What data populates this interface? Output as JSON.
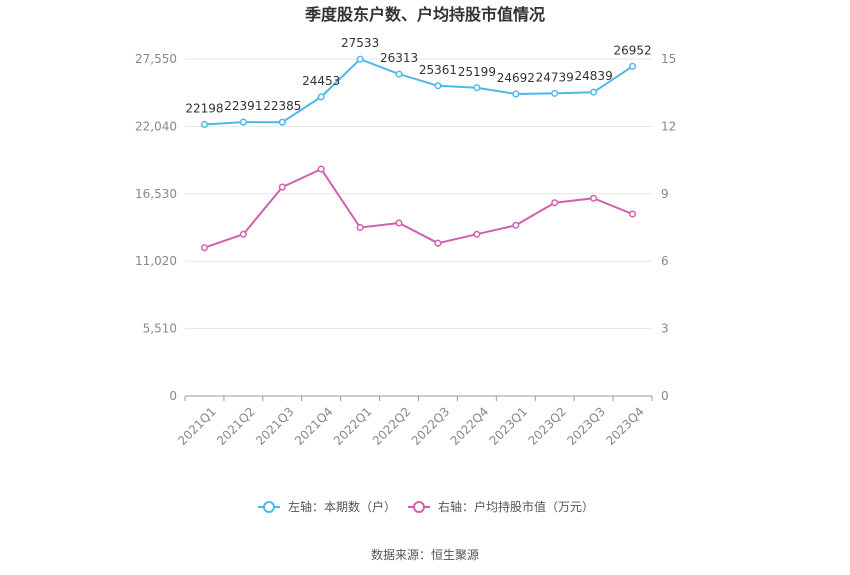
{
  "chart_data": {
    "type": "line",
    "title": "季度股东户数、户均持股市值情况",
    "categories": [
      "2021Q1",
      "2021Q2",
      "2021Q3",
      "2021Q4",
      "2022Q1",
      "2022Q2",
      "2022Q3",
      "2022Q4",
      "2023Q1",
      "2023Q2",
      "2023Q3",
      "2023Q4"
    ],
    "left_axis": {
      "ticks": [
        "0",
        "5,510",
        "11,020",
        "16,530",
        "22,040",
        "27,550"
      ],
      "min": 0,
      "max": 27550
    },
    "right_axis": {
      "ticks": [
        "0",
        "3",
        "6",
        "9",
        "12",
        "15"
      ],
      "min": 0,
      "max": 15
    },
    "series": [
      {
        "name": "左轴：本期数（户）",
        "axis": "left",
        "color": "#4db8e8",
        "values": [
          22198,
          22391,
          22385,
          24453,
          27533,
          26313,
          25361,
          25199,
          24692,
          24739,
          24839,
          26952
        ],
        "labels": [
          "22198",
          "22391",
          "22385",
          "24453",
          "27533",
          "26313",
          "25361",
          "25199",
          "24692",
          "24739",
          "24839",
          "26952"
        ]
      },
      {
        "name": "右轴：户均持股市值（万元）",
        "axis": "right",
        "color": "#d25fae",
        "values": [
          6.6,
          7.2,
          9.3,
          10.1,
          7.5,
          7.7,
          6.8,
          7.2,
          7.6,
          8.6,
          8.8,
          8.1
        ]
      }
    ],
    "grid": true,
    "legend_position": "bottom"
  },
  "source": "数据来源：恒生聚源"
}
